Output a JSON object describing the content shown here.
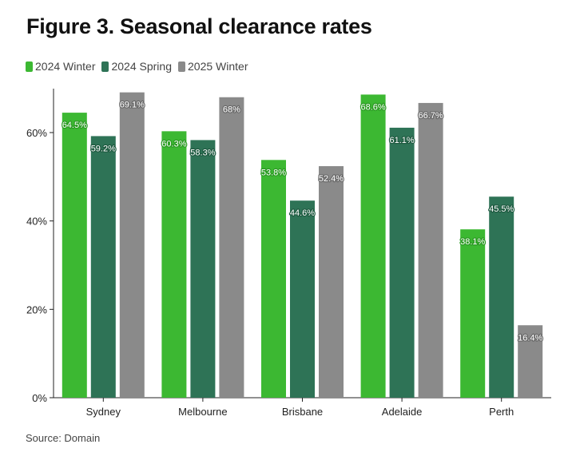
{
  "title": "Figure 3. Seasonal clearance rates",
  "source": "Source: Domain",
  "chart_data": {
    "type": "bar",
    "title": "Figure 3. Seasonal clearance rates",
    "categories": [
      "Sydney",
      "Melbourne",
      "Brisbane",
      "Adelaide",
      "Perth"
    ],
    "series": [
      {
        "name": "2024 Winter",
        "color": "#3cb832",
        "values": [
          64.5,
          60.3,
          53.8,
          68.6,
          38.1
        ],
        "labels": [
          "64.5%",
          "60.3%",
          "53.8%",
          "68.6%",
          "38.1%"
        ]
      },
      {
        "name": "2024 Spring",
        "color": "#2e7356",
        "values": [
          59.2,
          58.3,
          44.6,
          61.1,
          45.5
        ],
        "labels": [
          "59.2%",
          "58.3%",
          "44.6%",
          "61.1%",
          "45.5%"
        ]
      },
      {
        "name": "2025 Winter",
        "color": "#8a8a8a",
        "values": [
          69.1,
          68,
          52.4,
          66.7,
          16.4
        ],
        "labels": [
          "69.1%",
          "68%",
          "52.4%",
          "66.7%",
          "16.4%"
        ]
      }
    ],
    "yticks": [
      0,
      20,
      40,
      60
    ],
    "ytick_labels": [
      "0%",
      "20%",
      "40%",
      "60%"
    ],
    "ylim": [
      0,
      70
    ],
    "grid": false,
    "legend": "top-left"
  }
}
